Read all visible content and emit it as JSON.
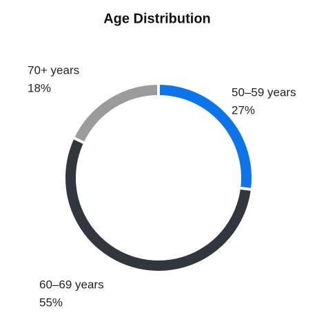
{
  "chart_data": {
    "type": "donut",
    "title": "Age Distribution",
    "categories": [
      "50–59 years",
      "60–69 years",
      "70+ years"
    ],
    "values": [
      27,
      55,
      18
    ],
    "value_labels": [
      "27%",
      "55%",
      "18%"
    ],
    "colors": [
      "#0d74ea",
      "#32363e",
      "#9b9b9b"
    ]
  }
}
